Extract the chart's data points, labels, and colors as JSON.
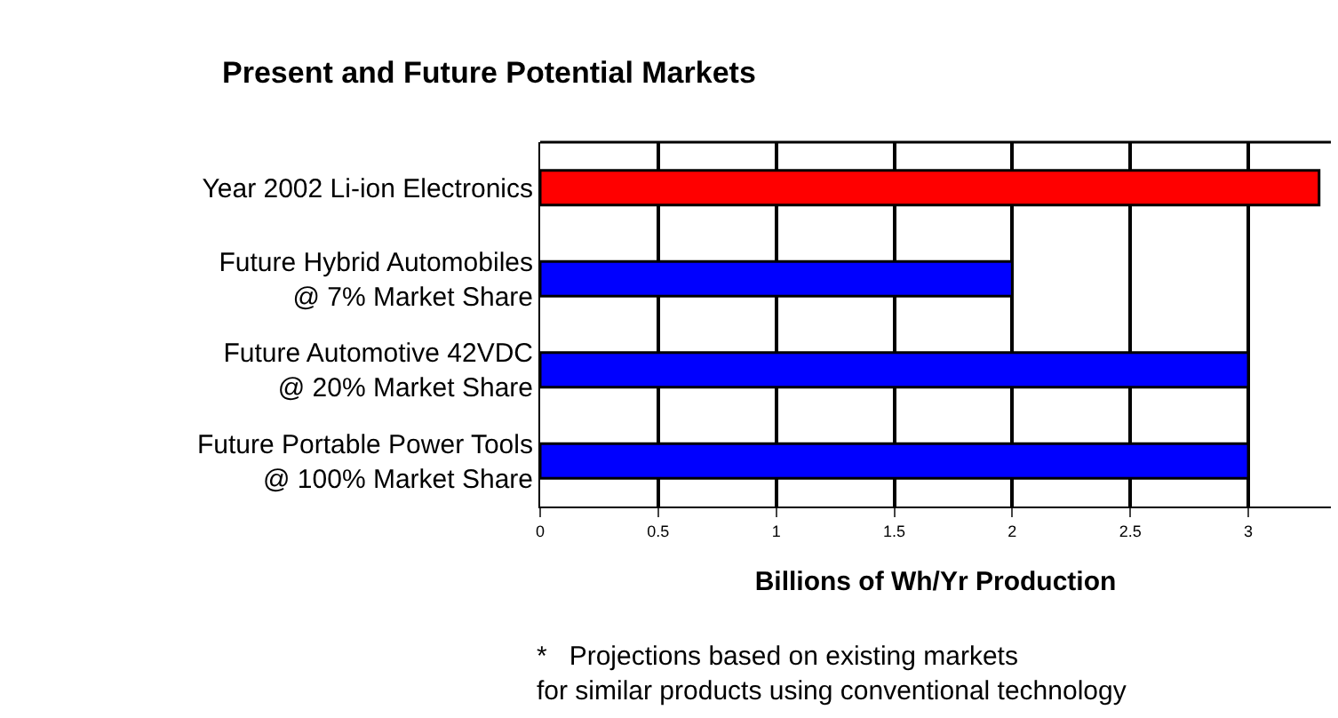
{
  "chart_data": {
    "type": "bar",
    "orientation": "horizontal",
    "title": "Present and Future Potential Markets",
    "categories": [
      "Year 2002 Li-ion Electronics",
      "Future Hybrid Automobiles\n@ 7% Market Share",
      "Future Automotive 42VDC\n@ 20% Market Share",
      "Future Portable Power Tools\n@ 100% Market Share"
    ],
    "values": [
      3.3,
      2,
      3,
      3
    ],
    "colors": [
      "#ff0000",
      "#0000ff",
      "#0000ff",
      "#0000ff"
    ],
    "xlabel": "Billions of Wh/Yr Production",
    "xlim": [
      0,
      3.35
    ],
    "xticks": [
      0,
      0.5,
      1,
      1.5,
      2,
      2.5,
      3
    ],
    "grid": "x",
    "annotations": [
      "*   Projections based on existing markets\nfor similar products using conventional technology"
    ]
  }
}
